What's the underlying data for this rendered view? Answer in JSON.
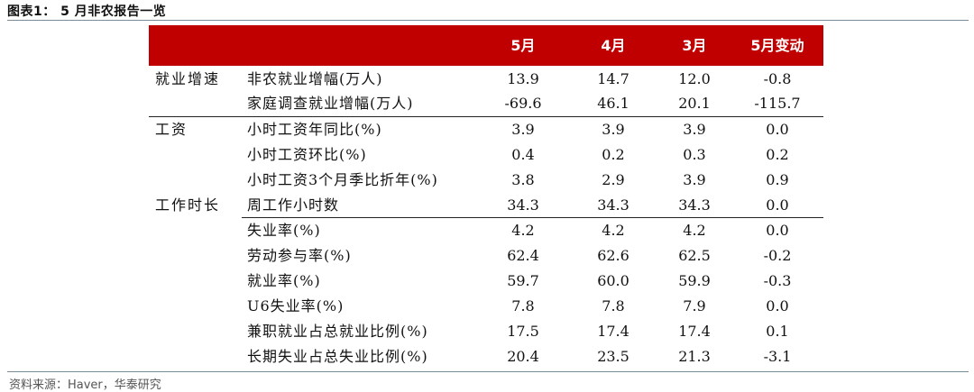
{
  "title": "图表1：  5 月非农报告一览",
  "header": [
    "5月",
    "4月",
    "3月",
    "5月变动"
  ],
  "rows": [
    {
      "category": "就业增速",
      "label": "非农就业增幅(万人)",
      "v": [
        "13.9",
        "14.7",
        "12.0",
        "-0.8"
      ]
    },
    {
      "category": "",
      "label": "家庭调查就业增幅(万人)",
      "v": [
        "-69.6",
        "46.1",
        "20.1",
        "-115.7"
      ]
    },
    {
      "category": "工资",
      "label": "小时工资年同比(%)",
      "v": [
        "3.9",
        "3.9",
        "3.9",
        "0.0"
      ]
    },
    {
      "category": "",
      "label": "小时工资环比(%)",
      "v": [
        "0.4",
        "0.2",
        "0.3",
        "0.2"
      ]
    },
    {
      "category": "",
      "label": "小时工资3个月季比折年(%)",
      "v": [
        "3.8",
        "2.9",
        "3.9",
        "0.9"
      ]
    },
    {
      "category": "工作时长",
      "label": "周工作小时数",
      "v": [
        "34.3",
        "34.3",
        "34.3",
        "0.0"
      ]
    },
    {
      "category": "",
      "label": "失业率(%)",
      "v": [
        "4.2",
        "4.2",
        "4.2",
        "0.0"
      ]
    },
    {
      "category": "",
      "label": "劳动参与率(%)",
      "v": [
        "62.4",
        "62.6",
        "62.5",
        "-0.2"
      ]
    },
    {
      "category": "",
      "label": "就业率(%)",
      "v": [
        "59.7",
        "60.0",
        "59.9",
        "-0.3"
      ]
    },
    {
      "category": "",
      "label": "U6失业率(%)",
      "v": [
        "7.8",
        "7.8",
        "7.9",
        "0.0"
      ]
    },
    {
      "category": "",
      "label": "兼职就业占总就业比例(%)",
      "v": [
        "17.5",
        "17.4",
        "17.4",
        "0.1"
      ]
    },
    {
      "category": "",
      "label": "长期失业占总失业比例(%)",
      "v": [
        "20.4",
        "23.5",
        "21.3",
        "-3.1"
      ]
    }
  ],
  "source": "资料来源：Haver，华泰研究"
}
